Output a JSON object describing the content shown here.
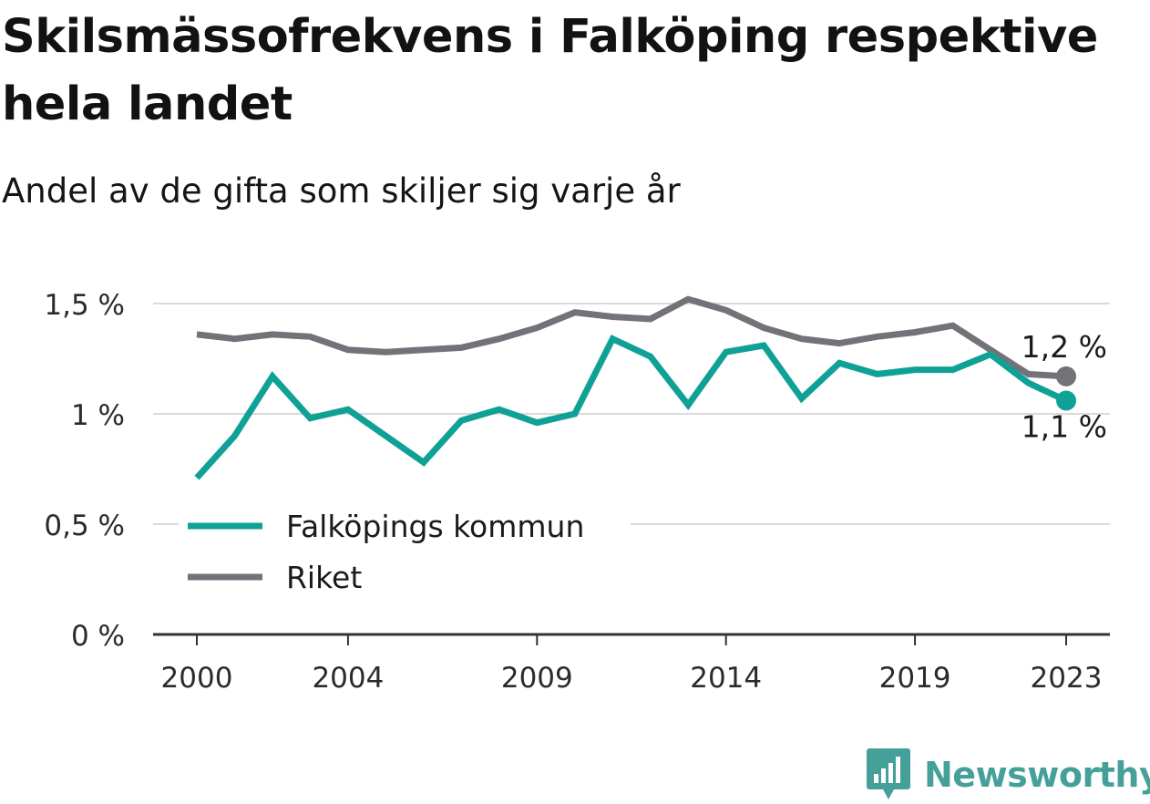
{
  "header": {
    "title": "Skilsmässofrekvens i Falköping respektive hela landet",
    "subtitle": "Andel av de gifta som skiljer sig varje år"
  },
  "brand": {
    "name": "Newsworthy",
    "icon": "newsworthy-logo-icon",
    "color": "#45a09a"
  },
  "chart_data": {
    "type": "line",
    "title": "Skilsmässofrekvens i Falköping respektive hela landet",
    "subtitle": "Andel av de gifta som skiljer sig varje år",
    "xlabel": "",
    "ylabel": "",
    "x": [
      2000,
      2001,
      2002,
      2003,
      2004,
      2005,
      2006,
      2007,
      2008,
      2009,
      2010,
      2011,
      2012,
      2013,
      2014,
      2015,
      2016,
      2017,
      2018,
      2019,
      2020,
      2021,
      2022,
      2023
    ],
    "x_tick_labels": [
      "2000",
      "2004",
      "2009",
      "2014",
      "2019",
      "2023"
    ],
    "x_tick_values": [
      2000,
      2004,
      2009,
      2014,
      2019,
      2023
    ],
    "y_tick_labels": [
      "0 %",
      "0,5 %",
      "1 %",
      "1,5 %"
    ],
    "y_tick_values": [
      0,
      0.5,
      1.0,
      1.5
    ],
    "ylim": [
      0,
      1.5
    ],
    "grid": "horizontal",
    "legend_position": "bottom-left",
    "series": [
      {
        "name": "Falköpings kommun",
        "color": "#10a196",
        "end_label": "1,1 %",
        "values": [
          0.71,
          0.9,
          1.17,
          0.98,
          1.02,
          0.9,
          0.78,
          0.97,
          1.02,
          0.96,
          1.0,
          1.34,
          1.26,
          1.04,
          1.28,
          1.31,
          1.07,
          1.23,
          1.18,
          1.2,
          1.2,
          1.27,
          1.14,
          1.06
        ]
      },
      {
        "name": "Riket",
        "color": "#747279",
        "end_label": "1,2 %",
        "values": [
          1.36,
          1.34,
          1.36,
          1.35,
          1.29,
          1.28,
          1.29,
          1.3,
          1.34,
          1.39,
          1.46,
          1.44,
          1.43,
          1.52,
          1.47,
          1.39,
          1.34,
          1.32,
          1.35,
          1.37,
          1.4,
          1.29,
          1.18,
          1.17
        ]
      }
    ]
  }
}
